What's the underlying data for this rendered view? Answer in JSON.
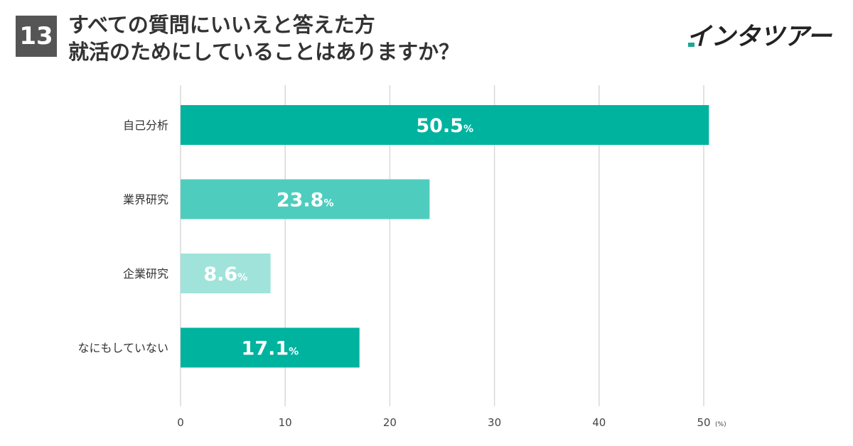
{
  "header": {
    "badge": "13",
    "title_line1": "すべての質問にいいえと答えた方",
    "title_line2": "就活のためにしていることはありますか？"
  },
  "logo": {
    "text": "インタツアー",
    "color": "#222222",
    "accent": "#1aa893"
  },
  "chart_data": {
    "type": "bar",
    "orientation": "horizontal",
    "categories": [
      "自己分析",
      "業界研究",
      "企業研究",
      "なにもしていない"
    ],
    "values": [
      50.5,
      23.8,
      8.6,
      17.1
    ],
    "value_labels": [
      "50.5",
      "23.8",
      "8.6",
      "17.1"
    ],
    "value_suffix": "%",
    "colors": [
      "#00b39f",
      "#4ecdbe",
      "#9fe3da",
      "#00b39f"
    ],
    "xlim": [
      0,
      50
    ],
    "xticks": [
      0,
      10,
      20,
      30,
      40,
      50
    ],
    "xtick_labels": [
      "0",
      "10",
      "20",
      "30",
      "40",
      "50"
    ],
    "x_unit": "(%)",
    "grid": true
  }
}
